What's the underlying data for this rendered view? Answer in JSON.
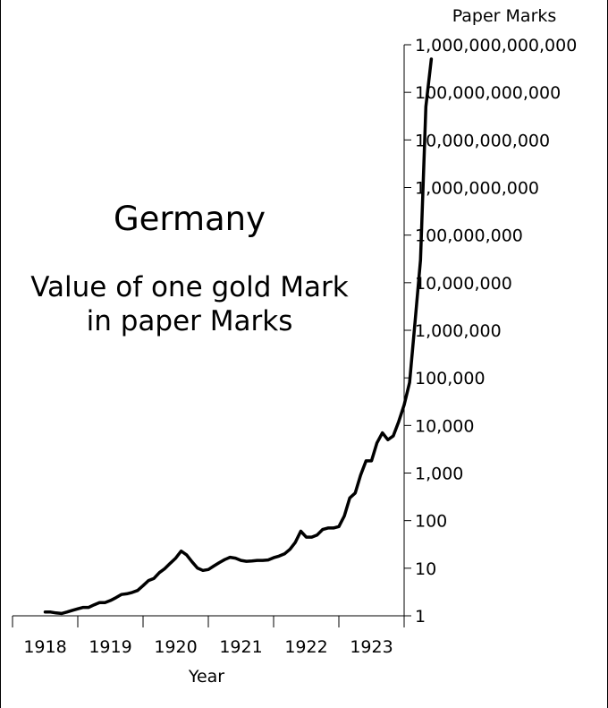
{
  "chart_data": {
    "type": "line",
    "title": "Germany",
    "subtitle_lines": [
      "Value of one gold Mark",
      "in paper Marks"
    ],
    "xlabel": "Year",
    "ylabel": "Paper Marks",
    "y_scale": "log",
    "ylim": [
      1,
      1000000000000
    ],
    "x_ticks": [
      "1918",
      "1919",
      "1920",
      "1921",
      "1922",
      "1923"
    ],
    "y_ticks": [
      {
        "value": 1,
        "label": "1"
      },
      {
        "value": 10,
        "label": "10"
      },
      {
        "value": 100,
        "label": "100"
      },
      {
        "value": 1000,
        "label": "1,000"
      },
      {
        "value": 10000,
        "label": "10,000"
      },
      {
        "value": 100000,
        "label": "100,000"
      },
      {
        "value": 1000000,
        "label": "1,000,000"
      },
      {
        "value": 10000000,
        "label": "10,000,000"
      },
      {
        "value": 100000000,
        "label": "100,000,000"
      },
      {
        "value": 1000000000,
        "label": "1,000,000,000"
      },
      {
        "value": 10000000000,
        "label": "10,000,000,000"
      },
      {
        "value": 100000000000,
        "label": "100,000,000,000"
      },
      {
        "value": 1000000000000,
        "label": "1,000,000,000,000"
      }
    ],
    "grid": false,
    "legend": "none",
    "line_color": "#000000",
    "series": [
      {
        "x": [
          1918.0,
          1918.083,
          1918.167,
          1918.25,
          1918.333,
          1918.417,
          1918.5,
          1918.583,
          1918.667,
          1918.75,
          1918.833,
          1918.917,
          1919.0,
          1919.083,
          1919.167,
          1919.25,
          1919.333,
          1919.417,
          1919.5,
          1919.583,
          1919.667,
          1919.75,
          1919.833,
          1919.917,
          1920.0,
          1920.083,
          1920.167,
          1920.25,
          1920.333,
          1920.417,
          1920.5,
          1920.583,
          1920.667,
          1920.75,
          1920.833,
          1920.917,
          1921.0,
          1921.083,
          1921.167,
          1921.25,
          1921.333,
          1921.417,
          1921.5,
          1921.583,
          1921.667,
          1921.75,
          1921.833,
          1921.917,
          1922.0,
          1922.083,
          1922.167,
          1922.25,
          1922.333,
          1922.417,
          1922.5,
          1922.583,
          1922.667,
          1922.75,
          1922.833,
          1922.917,
          1923.0,
          1923.083,
          1923.167,
          1923.25,
          1923.333,
          1923.417,
          1923.5,
          1923.583,
          1923.667,
          1923.75,
          1923.833,
          1923.917
        ],
        "y": [
          1.2,
          1.2,
          1.15,
          1.12,
          1.2,
          1.3,
          1.4,
          1.5,
          1.5,
          1.7,
          1.9,
          1.9,
          2.1,
          2.4,
          2.8,
          2.9,
          3.1,
          3.4,
          4.3,
          5.5,
          6.1,
          8.1,
          9.8,
          12.7,
          16.3,
          22.9,
          19.1,
          13.6,
          10.1,
          9.0,
          9.4,
          11.1,
          13.1,
          15.2,
          17.0,
          16.3,
          14.6,
          14.0,
          14.2,
          14.6,
          14.6,
          14.9,
          16.6,
          18.0,
          20.0,
          25.0,
          35.0,
          60.0,
          45.0,
          45.0,
          50.0,
          65.0,
          70.0,
          70.0,
          75.0,
          125.0,
          300.0,
          380.0,
          900.0,
          1800.0,
          1800.0,
          4300.0,
          7000.0,
          5000.0,
          6000.0,
          12000.0,
          27000.0,
          80000.0,
          1500000.0,
          30000000.0,
          50000000000.0,
          500000000000.0
        ]
      }
    ]
  }
}
